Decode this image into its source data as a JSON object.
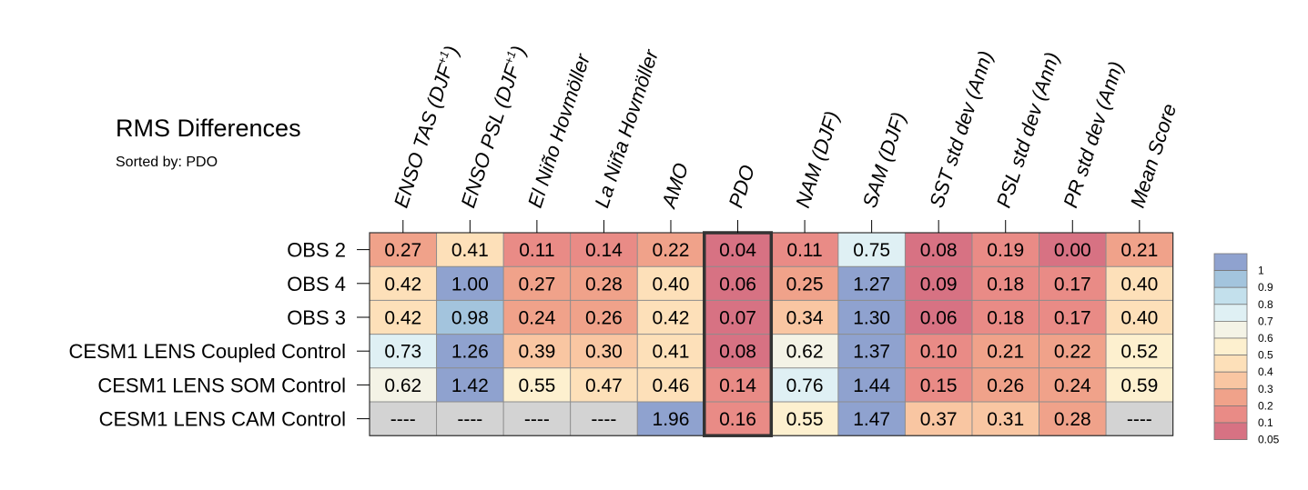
{
  "header": {
    "title": "RMS Differences",
    "subtitle": "Sorted by: PDO"
  },
  "chart_data": {
    "type": "heatmap",
    "title": "RMS Differences",
    "subtitle": "Sorted by: PDO",
    "sorted_by": "PDO",
    "highlighted_column": "PDO",
    "columns": [
      {
        "base": "ENSO TAS (DJF",
        "sup": "+1",
        "tail": ")"
      },
      {
        "base": "ENSO PSL (DJF",
        "sup": "+1",
        "tail": ")"
      },
      {
        "base": "El Niño Hovmöller",
        "sup": "",
        "tail": ""
      },
      {
        "base": "La Niña Hovmöller",
        "sup": "",
        "tail": ""
      },
      {
        "base": "AMO",
        "sup": "",
        "tail": ""
      },
      {
        "base": "PDO",
        "sup": "",
        "tail": ""
      },
      {
        "base": "NAM (DJF)",
        "sup": "",
        "tail": ""
      },
      {
        "base": "SAM (DJF)",
        "sup": "",
        "tail": ""
      },
      {
        "base": "SST std dev (Ann)",
        "sup": "",
        "tail": ""
      },
      {
        "base": "PSL std dev (Ann)",
        "sup": "",
        "tail": ""
      },
      {
        "base": "PR std dev (Ann)",
        "sup": "",
        "tail": ""
      },
      {
        "base": "Mean Score",
        "sup": "",
        "tail": ""
      }
    ],
    "rows": [
      {
        "name": "OBS 2",
        "values": [
          "0.27",
          "0.41",
          "0.11",
          "0.14",
          "0.22",
          "0.04",
          "0.11",
          "0.75",
          "0.08",
          "0.19",
          "0.00",
          "0.21"
        ]
      },
      {
        "name": "OBS 4",
        "values": [
          "0.42",
          "1.00",
          "0.27",
          "0.28",
          "0.40",
          "0.06",
          "0.25",
          "1.27",
          "0.09",
          "0.18",
          "0.17",
          "0.40"
        ]
      },
      {
        "name": "OBS 3",
        "values": [
          "0.42",
          "0.98",
          "0.24",
          "0.26",
          "0.42",
          "0.07",
          "0.34",
          "1.30",
          "0.06",
          "0.18",
          "0.17",
          "0.40"
        ]
      },
      {
        "name": "CESM1 LENS Coupled Control",
        "values": [
          "0.73",
          "1.26",
          "0.39",
          "0.30",
          "0.41",
          "0.08",
          "0.62",
          "1.37",
          "0.10",
          "0.21",
          "0.22",
          "0.52"
        ]
      },
      {
        "name": "CESM1 LENS SOM Control",
        "values": [
          "0.62",
          "1.42",
          "0.55",
          "0.47",
          "0.46",
          "0.14",
          "0.76",
          "1.44",
          "0.15",
          "0.26",
          "0.24",
          "0.59"
        ]
      },
      {
        "name": "CESM1 LENS CAM Control",
        "values": [
          "----",
          "----",
          "----",
          "----",
          "1.96",
          "0.16",
          "0.55",
          "1.47",
          "0.37",
          "0.31",
          "0.28",
          "----"
        ]
      }
    ],
    "missing_marker": "----",
    "missing_color": "#d3d3d3",
    "legend": {
      "placement": "right",
      "labels": [
        "1",
        "0.9",
        "0.8",
        "0.7",
        "0.6",
        "0.5",
        "0.4",
        "0.3",
        "0.2",
        "0.1",
        "0.05"
      ],
      "colors": [
        "#8fa2cf",
        "#a3c4dd",
        "#c3e0ec",
        "#dff0f4",
        "#f4f3e6",
        "#fdf0cf",
        "#fde0b9",
        "#f9c6a2",
        "#f0a28a",
        "#e98b86",
        "#d77283"
      ]
    }
  }
}
